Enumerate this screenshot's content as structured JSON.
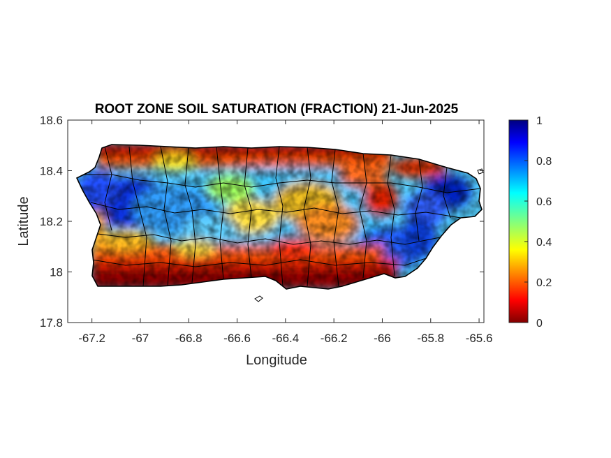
{
  "chart_data": {
    "type": "heatmap",
    "title": "ROOT ZONE SOIL SATURATION (FRACTION) 21-Jun-2025",
    "xlabel": "Longitude",
    "ylabel": "Latitude",
    "xlim": [
      -67.3,
      -65.58
    ],
    "ylim": [
      17.8,
      18.6
    ],
    "xticks": [
      -67.2,
      -67,
      -66.8,
      -66.6,
      -66.4,
      -66.2,
      -66,
      -65.8,
      -65.6
    ],
    "xtick_labels": [
      "-67.2",
      "-67",
      "-66.8",
      "-66.6",
      "-66.4",
      "-66.2",
      "-66",
      "-65.8",
      "-65.6"
    ],
    "yticks": [
      17.8,
      18,
      18.2,
      18.4,
      18.6
    ],
    "ytick_labels": [
      "17.8",
      "18",
      "18.2",
      "18.4",
      "18.6"
    ],
    "colorbar": {
      "range": [
        0,
        1
      ],
      "ticks": [
        0,
        0.2,
        0.4,
        0.6,
        0.8,
        1
      ],
      "tick_labels": [
        "0",
        "0.2",
        "0.4",
        "0.6",
        "0.8",
        "1"
      ],
      "colormap": "jet-reversed (0 dark red, 0.5 yellow-green, 1 dark blue)"
    },
    "spatial_summary": [
      {
        "region": "south coast",
        "saturation_approx": 0.05
      },
      {
        "region": "north coast",
        "saturation_approx": 0.1
      },
      {
        "region": "west interior",
        "saturation_approx": 0.85
      },
      {
        "region": "central interior",
        "saturation_approx": 0.6
      },
      {
        "region": "northeast (El Yunque)",
        "saturation_approx": 0.85
      },
      {
        "region": "southeast",
        "saturation_approx": 0.8
      }
    ]
  }
}
